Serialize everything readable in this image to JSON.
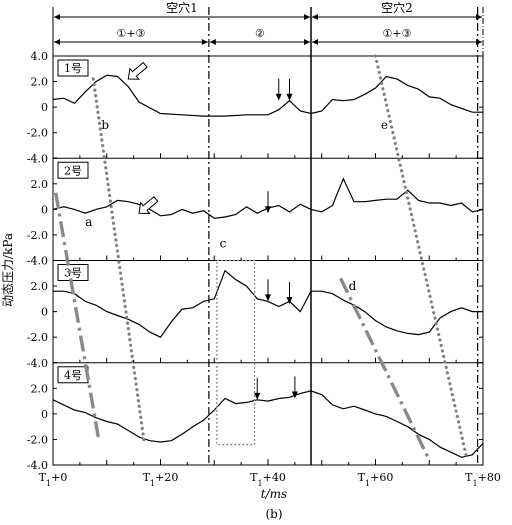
{
  "chart_data": {
    "type": "line",
    "caption": "(b)",
    "xlabel": "t/ms",
    "ylabel": "动态压力/kPa",
    "xlim": [
      0,
      80
    ],
    "ylim": [
      -4.0,
      4.0
    ],
    "x_ticks": [
      {
        "x": 0,
        "label": "T1+0"
      },
      {
        "x": 20,
        "label": "T1+20"
      },
      {
        "x": 40,
        "label": "T1+40"
      },
      {
        "x": 60,
        "label": "T1+60"
      },
      {
        "x": 80,
        "label": "T1+80"
      }
    ],
    "y_ticks": [
      "4.0",
      "2.0",
      "0",
      "-2.0",
      "-4.0"
    ],
    "phase_header": {
      "cavities": [
        {
          "label": "空穴1",
          "from": 0,
          "to": 48
        },
        {
          "label": "空穴2",
          "from": 48,
          "to": 80
        }
      ],
      "stages": [
        {
          "label": "①+③",
          "from": 0,
          "to": 29
        },
        {
          "label": "②",
          "from": 29,
          "to": 48
        },
        {
          "label": "①+③",
          "from": 48,
          "to": 80
        }
      ]
    },
    "vlines": {
      "dashdot": [
        29,
        79
      ],
      "solid": [
        48
      ]
    },
    "panels": [
      {
        "name": "1号",
        "series": {
          "x": [
            0,
            2,
            4,
            6,
            8,
            10,
            12,
            14,
            16,
            20,
            24,
            28,
            32,
            36,
            40,
            42,
            44,
            46,
            48,
            50,
            52,
            54,
            56,
            58,
            60,
            62,
            64,
            66,
            68,
            70,
            72,
            74,
            76,
            78,
            80
          ],
          "y": [
            0.6,
            0.7,
            0.3,
            1.2,
            2.0,
            2.5,
            2.4,
            1.6,
            0.4,
            -0.5,
            -0.6,
            -0.7,
            -0.7,
            -0.6,
            -0.6,
            -0.2,
            0.5,
            -0.3,
            -0.5,
            -0.3,
            0.6,
            0.5,
            0.6,
            1.0,
            1.5,
            2.4,
            2.2,
            1.7,
            1.4,
            0.8,
            0.7,
            0.2,
            -0.1,
            -0.4,
            -0.4
          ]
        },
        "arrows": [
          {
            "x": 14,
            "y": 2.2,
            "style": "hollow"
          },
          {
            "x": 42,
            "y": 0.5,
            "style": "thin"
          },
          {
            "x": 44,
            "y": 0.5,
            "style": "thin"
          }
        ],
        "annotations": [
          {
            "text": "b",
            "x": 9,
            "y": -1.7
          },
          {
            "text": "e",
            "x": 61,
            "y": -1.7
          }
        ]
      },
      {
        "name": "2号",
        "series": {
          "x": [
            0,
            2,
            4,
            6,
            8,
            10,
            12,
            14,
            16,
            18,
            20,
            22,
            24,
            26,
            28,
            30,
            32,
            34,
            36,
            38,
            40,
            42,
            44,
            46,
            48,
            50,
            52,
            54,
            56,
            58,
            60,
            62,
            64,
            66,
            68,
            70,
            72,
            74,
            76,
            78,
            80
          ],
          "y": [
            0.0,
            0.2,
            0.0,
            -0.3,
            0.0,
            0.2,
            0.7,
            0.6,
            0.4,
            0.0,
            -0.5,
            -0.4,
            0.0,
            -0.3,
            -0.1,
            -0.7,
            -0.6,
            -0.4,
            0.2,
            -0.3,
            0.1,
            0.3,
            -0.2,
            0.4,
            0.0,
            -0.2,
            0.3,
            2.4,
            0.6,
            0.6,
            0.7,
            0.8,
            0.8,
            1.5,
            0.7,
            0.5,
            0.5,
            0.3,
            0.5,
            -0.2,
            0.0
          ]
        },
        "arrows": [
          {
            "x": 16,
            "y": -0.3,
            "style": "hollow"
          },
          {
            "x": 40,
            "y": -0.3,
            "style": "thin"
          }
        ],
        "annotations": [
          {
            "text": "a",
            "x": 6,
            "y": -1.3
          },
          {
            "text": "c",
            "x": 31,
            "y": -3.0
          }
        ]
      },
      {
        "name": "3号",
        "series": {
          "x": [
            0,
            2,
            4,
            6,
            8,
            10,
            12,
            14,
            16,
            18,
            20,
            22,
            24,
            26,
            28,
            30,
            32,
            34,
            36,
            38,
            40,
            42,
            44,
            46,
            48,
            50,
            52,
            54,
            56,
            58,
            60,
            62,
            64,
            66,
            68,
            70,
            72,
            74,
            76,
            78,
            80
          ],
          "y": [
            1.6,
            1.6,
            1.4,
            0.8,
            0.5,
            0.0,
            -0.3,
            -0.6,
            -1.0,
            -1.6,
            -2.0,
            -0.8,
            0.2,
            0.3,
            0.8,
            1.0,
            3.2,
            2.5,
            2.0,
            1.0,
            0.8,
            0.4,
            0.8,
            0.0,
            1.6,
            1.6,
            1.4,
            0.9,
            0.5,
            0.0,
            -0.7,
            -1.2,
            -1.5,
            -1.7,
            -1.8,
            -1.6,
            -0.5,
            0.0,
            0.3,
            0.0,
            0.0
          ]
        },
        "arrows": [
          {
            "x": 40,
            "y": 0.8,
            "style": "thin"
          },
          {
            "x": 44,
            "y": 0.6,
            "style": "thin"
          }
        ],
        "annotations": [
          {
            "text": "d",
            "x": 55,
            "y": 1.7
          }
        ]
      },
      {
        "name": "4号",
        "series": {
          "x": [
            0,
            2,
            4,
            6,
            8,
            10,
            12,
            14,
            16,
            18,
            20,
            22,
            24,
            26,
            28,
            30,
            32,
            34,
            36,
            38,
            40,
            42,
            44,
            46,
            48,
            50,
            52,
            54,
            56,
            58,
            60,
            62,
            64,
            66,
            68,
            70,
            72,
            74,
            76,
            78,
            80
          ],
          "y": [
            1.1,
            0.7,
            0.3,
            0.1,
            -0.3,
            -0.6,
            -0.8,
            -1.3,
            -1.8,
            -2.1,
            -2.2,
            -2.1,
            -1.6,
            -1.0,
            -0.5,
            0.3,
            1.2,
            0.8,
            0.9,
            1.1,
            1.0,
            1.2,
            1.3,
            1.6,
            1.8,
            1.5,
            0.7,
            0.4,
            0.6,
            0.3,
            0.0,
            -0.2,
            -0.6,
            -1.0,
            -1.6,
            -2.0,
            -2.6,
            -3.0,
            -3.4,
            -3.2,
            -2.3
          ]
        },
        "arrows": [
          {
            "x": 38,
            "y": 1.1,
            "style": "thin"
          },
          {
            "x": 45,
            "y": 1.2,
            "style": "thin"
          }
        ],
        "annotations": []
      }
    ],
    "overlays": [
      {
        "label": "b",
        "style": "dotted",
        "x0": 7.5,
        "y0": 2.2,
        "panel0": 0,
        "x1": 17,
        "y1": -2.3,
        "panel1": 3
      },
      {
        "label": "a",
        "style": "dashdot",
        "x0": 0.5,
        "y0": 1.3,
        "panel0": 1,
        "x1": 8.5,
        "y1": -2.0,
        "panel1": 3
      },
      {
        "label": "e",
        "style": "dotted",
        "x0": 60,
        "y0": 4.0,
        "panel0": 0,
        "x1": 77,
        "y1": -3.5,
        "panel1": 3
      },
      {
        "label": "d",
        "style": "dashdot",
        "x0": 53.5,
        "y0": 2.6,
        "panel0": 2,
        "x1": 70,
        "y1": -3.6,
        "panel1": 3
      }
    ],
    "highlight_box": {
      "label": "c",
      "x0": 30.5,
      "x1": 37.5,
      "y_top": 4.0,
      "panel_top": 2,
      "y_bottom": -2.4,
      "panel_bottom": 3
    }
  }
}
